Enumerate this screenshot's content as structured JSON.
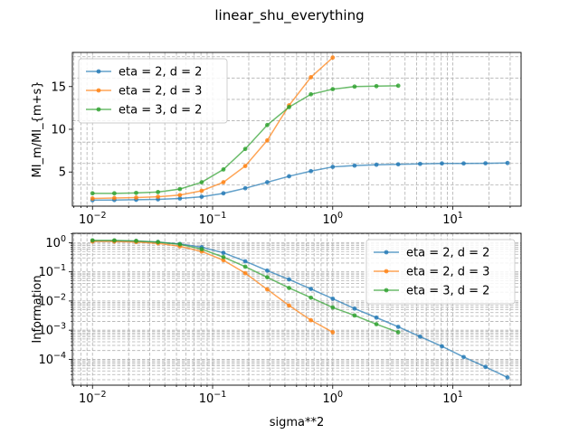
{
  "figure": {
    "title": "linear_shu_everything"
  },
  "chart_data": [
    {
      "type": "line",
      "title": "",
      "xlabel": "",
      "ylabel": "MI_m/MI_{m+s}",
      "xscale": "log",
      "yscale": "linear",
      "xlim": [
        0.0068,
        37
      ],
      "ylim": [
        1.0,
        19.0
      ],
      "yticks": [
        5,
        10,
        15
      ],
      "ytick_labels": [
        "5",
        "10",
        "15"
      ],
      "xticks": [
        0.01,
        0.1,
        1,
        10
      ],
      "xtick_labels": [
        "10^-2",
        "10^-1",
        "10^0",
        "10^1"
      ],
      "grid": true,
      "legend_position": "upper-left",
      "series": [
        {
          "name": "eta = 2, d = 2",
          "color": "#1f77b4",
          "x": [
            0.01,
            0.0152,
            0.0231,
            0.0351,
            0.0534,
            0.0811,
            0.123,
            0.187,
            0.285,
            0.433,
            0.658,
            1.0,
            1.52,
            2.31,
            3.51,
            5.34,
            8.11,
            12.3,
            18.7,
            28.5
          ],
          "y": [
            1.7,
            1.72,
            1.75,
            1.8,
            1.9,
            2.1,
            2.5,
            3.1,
            3.8,
            4.5,
            5.1,
            5.6,
            5.75,
            5.85,
            5.9,
            5.95,
            6.0,
            6.0,
            6.02,
            6.05
          ]
        },
        {
          "name": "eta = 2, d = 3",
          "color": "#ff7f0e",
          "x": [
            0.01,
            0.0152,
            0.0231,
            0.0351,
            0.0534,
            0.0811,
            0.123,
            0.187,
            0.285,
            0.433,
            0.658,
            1.0
          ],
          "y": [
            1.9,
            1.95,
            2.0,
            2.1,
            2.3,
            2.8,
            3.8,
            5.7,
            8.7,
            12.8,
            16.1,
            18.4
          ]
        },
        {
          "name": "eta = 3, d = 2",
          "color": "#2ca02c",
          "x": [
            0.01,
            0.0152,
            0.0231,
            0.0351,
            0.0534,
            0.0811,
            0.123,
            0.187,
            0.285,
            0.433,
            0.658,
            1.0,
            1.52,
            2.31,
            3.51
          ],
          "y": [
            2.5,
            2.5,
            2.55,
            2.65,
            3.0,
            3.8,
            5.3,
            7.7,
            10.5,
            12.6,
            14.1,
            14.7,
            15.0,
            15.05,
            15.1
          ]
        }
      ]
    },
    {
      "type": "line",
      "title": "",
      "xlabel": "sigma**2",
      "ylabel": "Information",
      "xscale": "log",
      "yscale": "log",
      "xlim": [
        0.0068,
        37
      ],
      "ylim": [
        1.3e-05,
        2.1
      ],
      "yticks": [
        0.0001,
        0.001,
        0.01,
        0.1,
        1
      ],
      "ytick_labels": [
        "10^-4",
        "10^-3",
        "10^-2",
        "10^-1",
        "10^0"
      ],
      "xticks": [
        0.01,
        0.1,
        1,
        10
      ],
      "xtick_labels": [
        "10^-2",
        "10^-1",
        "10^0",
        "10^1"
      ],
      "grid": true,
      "legend_position": "upper-right",
      "series": [
        {
          "name": "eta = 2, d = 2",
          "color": "#1f77b4",
          "x": [
            0.01,
            0.0152,
            0.0231,
            0.0351,
            0.0534,
            0.0811,
            0.123,
            0.187,
            0.285,
            0.433,
            0.658,
            1.0,
            1.52,
            2.31,
            3.51,
            5.34,
            8.11,
            12.3,
            18.7,
            28.5
          ],
          "y": [
            1.15,
            1.15,
            1.12,
            1.05,
            0.9,
            0.7,
            0.45,
            0.23,
            0.11,
            0.055,
            0.026,
            0.012,
            0.0055,
            0.0027,
            0.0013,
            0.0006,
            0.00028,
            0.00012,
            5.5e-05,
            2.4e-05
          ]
        },
        {
          "name": "eta = 2, d = 3",
          "color": "#ff7f0e",
          "x": [
            0.01,
            0.0152,
            0.0231,
            0.0351,
            0.0534,
            0.0811,
            0.123,
            0.187,
            0.285,
            0.433,
            0.658,
            1.0
          ],
          "y": [
            1.1,
            1.1,
            1.05,
            0.95,
            0.75,
            0.5,
            0.25,
            0.09,
            0.025,
            0.007,
            0.0022,
            0.00085
          ]
        },
        {
          "name": "eta = 3, d = 2",
          "color": "#2ca02c",
          "x": [
            0.01,
            0.0152,
            0.0231,
            0.0351,
            0.0534,
            0.0811,
            0.123,
            0.187,
            0.285,
            0.433,
            0.658,
            1.0,
            1.52,
            2.31,
            3.51
          ],
          "y": [
            1.2,
            1.2,
            1.15,
            1.05,
            0.88,
            0.6,
            0.32,
            0.15,
            0.065,
            0.028,
            0.013,
            0.006,
            0.0032,
            0.0016,
            0.00085
          ]
        }
      ]
    }
  ]
}
